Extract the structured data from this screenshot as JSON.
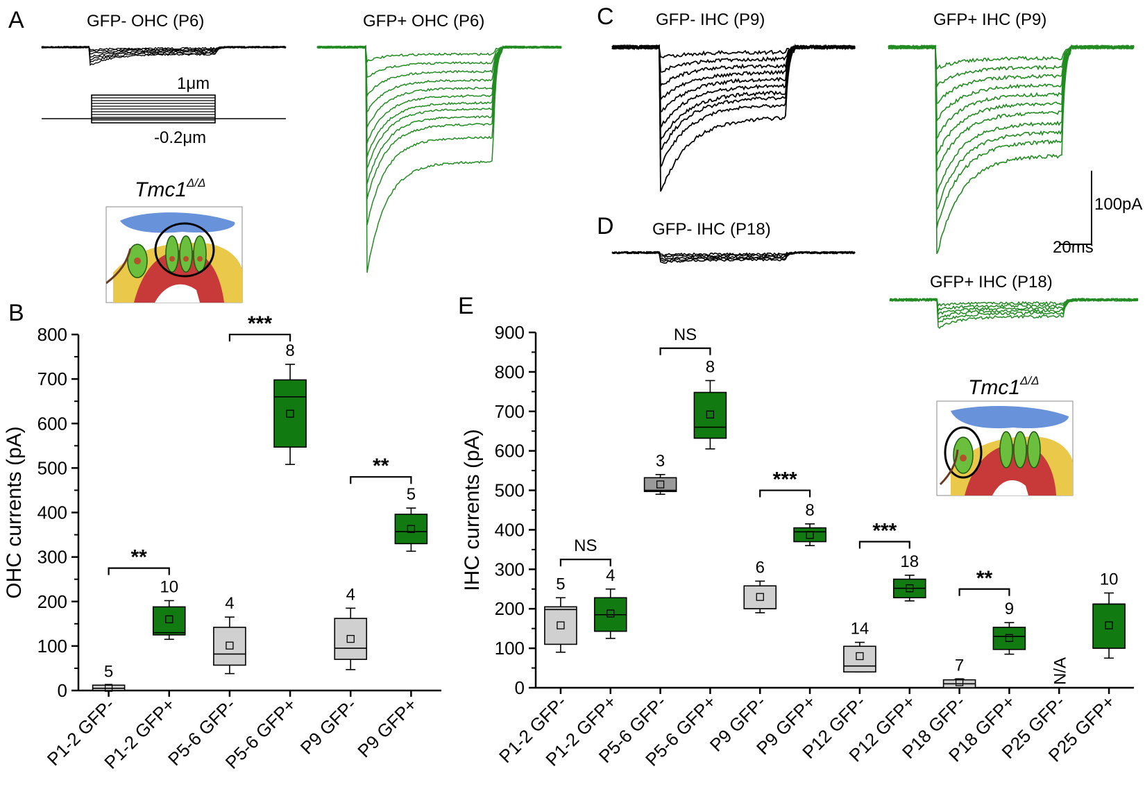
{
  "colors": {
    "gfp_pos": "#117a11",
    "gfp_neg": "#d0d0d0",
    "gfp_neg_dark": "#9a9a9a",
    "trace_black": "#000000",
    "trace_green": "#228b22"
  },
  "panels": {
    "A": "A",
    "B": "B",
    "C": "C",
    "D": "D",
    "E": "E"
  },
  "traces": {
    "a_neg_title": "GFP-  OHC (P6)",
    "a_pos_title": "GFP+  OHC (P6)",
    "c_neg_title": "GFP-  IHC (P9)",
    "c_pos_title": "GFP+  IHC (P9)",
    "d_neg_title": "GFP-  IHC (P18)",
    "d_pos_title": "GFP+  IHC (P18)",
    "stim_top": "1μm",
    "stim_bottom": "-0.2μm",
    "scale_y": "100pA",
    "scale_x": "20ms",
    "gene_label": "Tmc1",
    "gene_sup": "Δ/Δ"
  },
  "chart_data": [
    {
      "type": "box",
      "panel": "B",
      "ylabel": "OHC currents (pA)",
      "ylim": [
        0,
        800
      ],
      "yticks": [
        0,
        100,
        200,
        300,
        400,
        500,
        600,
        700,
        800
      ],
      "categories": [
        "P1-2 GFP-",
        "P1-2 GFP+",
        "P5-6 GFP-",
        "P5-6 GFP+",
        "P9 GFP-",
        "P9 GFP+"
      ],
      "groups": [
        "neg",
        "pos",
        "neg",
        "pos",
        "neg",
        "pos"
      ],
      "n": [
        "5",
        "10",
        "4",
        "8",
        "4",
        "5"
      ],
      "boxes": [
        {
          "min": 0,
          "q1": 0,
          "median": 5,
          "q3": 12,
          "max": 12,
          "mean": 6
        },
        {
          "min": 115,
          "q1": 125,
          "median": 130,
          "q3": 188,
          "max": 202,
          "mean": 160
        },
        {
          "min": 38,
          "q1": 57,
          "median": 82,
          "q3": 142,
          "max": 165,
          "mean": 101
        },
        {
          "min": 508,
          "q1": 547,
          "median": 660,
          "q3": 698,
          "max": 733,
          "mean": 622
        },
        {
          "min": 47,
          "q1": 70,
          "median": 95,
          "q3": 162,
          "max": 185,
          "mean": 116
        },
        {
          "min": 313,
          "q1": 330,
          "median": 357,
          "q3": 396,
          "max": 410,
          "mean": 363
        }
      ],
      "comparisons": [
        {
          "from": 0,
          "to": 1,
          "y": 275,
          "label": "**"
        },
        {
          "from": 2,
          "to": 3,
          "y": 800,
          "label": "***"
        },
        {
          "from": 4,
          "to": 5,
          "y": 480,
          "label": "**"
        }
      ]
    },
    {
      "type": "box",
      "panel": "E",
      "ylabel": "IHC currents (pA)",
      "ylim": [
        0,
        900
      ],
      "yticks": [
        0,
        100,
        200,
        300,
        400,
        500,
        600,
        700,
        800,
        900
      ],
      "categories": [
        "P1-2 GFP-",
        "P1-2 GFP+",
        "P5-6 GFP-",
        "P5-6 GFP+",
        "P9 GFP-",
        "P9 GFP+",
        "P12 GFP-",
        "P12 GFP+",
        "P18 GFP-",
        "P18 GFP+",
        "P25 GFP-",
        "P25 GFP+"
      ],
      "groups": [
        "neg",
        "pos",
        "neg_dark",
        "pos",
        "neg",
        "pos",
        "neg",
        "pos",
        "neg",
        "pos",
        "none",
        "pos"
      ],
      "n": [
        "5",
        "4",
        "3",
        "8",
        "6",
        "8",
        "14",
        "18",
        "7",
        "9",
        "N/A",
        "10"
      ],
      "boxes": [
        {
          "min": 90,
          "q1": 110,
          "median": 198,
          "q3": 205,
          "max": 228,
          "mean": 158
        },
        {
          "min": 125,
          "q1": 143,
          "median": 185,
          "q3": 228,
          "max": 250,
          "mean": 188
        },
        {
          "min": 490,
          "q1": 497,
          "median": 500,
          "q3": 532,
          "max": 540,
          "mean": 515
        },
        {
          "min": 605,
          "q1": 632,
          "median": 660,
          "q3": 748,
          "max": 778,
          "mean": 692
        },
        {
          "min": 190,
          "q1": 200,
          "median": 200,
          "q3": 258,
          "max": 270,
          "mean": 230
        },
        {
          "min": 360,
          "q1": 370,
          "median": 395,
          "q3": 405,
          "max": 415,
          "mean": 387
        },
        {
          "min": 40,
          "q1": 40,
          "median": 55,
          "q3": 105,
          "max": 115,
          "mean": 80
        },
        {
          "min": 220,
          "q1": 228,
          "median": 252,
          "q3": 275,
          "max": 285,
          "mean": 252
        },
        {
          "min": 0,
          "q1": 0,
          "median": 10,
          "q3": 20,
          "max": 22,
          "mean": 14
        },
        {
          "min": 85,
          "q1": 97,
          "median": 130,
          "q3": 153,
          "max": 165,
          "mean": 126
        },
        null,
        {
          "min": 75,
          "q1": 100,
          "median": 212,
          "q3": 212,
          "max": 240,
          "mean": 158
        }
      ],
      "comparisons": [
        {
          "from": 0,
          "to": 1,
          "y": 325,
          "label": "NS"
        },
        {
          "from": 2,
          "to": 3,
          "y": 860,
          "label": "NS"
        },
        {
          "from": 4,
          "to": 5,
          "y": 500,
          "label": "***"
        },
        {
          "from": 6,
          "to": 7,
          "y": 370,
          "label": "***"
        },
        {
          "from": 8,
          "to": 9,
          "y": 250,
          "label": "**"
        }
      ]
    }
  ]
}
